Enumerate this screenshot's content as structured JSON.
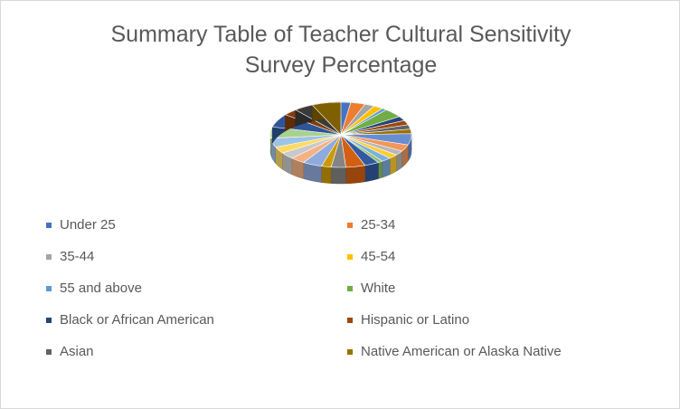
{
  "chart_data": {
    "type": "pie",
    "title": "Summary Table of Teacher Cultural Sensitivity Survey Percentage",
    "categories": [
      "Under 25",
      "25-34",
      "35-44",
      "45-54",
      "55 and above",
      "White",
      "Black or African American",
      "Hispanic or Latino",
      "Asian",
      "Native American or Alaska Native",
      null,
      null,
      null,
      null,
      null,
      null,
      null,
      null,
      null,
      null,
      null,
      null,
      null,
      null,
      null,
      null,
      null,
      null,
      null,
      null
    ],
    "values": [
      2,
      3,
      2,
      2,
      1,
      4,
      2,
      2,
      2,
      2,
      5,
      3,
      2,
      2,
      2,
      1,
      3,
      4,
      3,
      2,
      4,
      3,
      3,
      3,
      4,
      5,
      6,
      3,
      4,
      6
    ],
    "colors": [
      "#4472c4",
      "#ed7d31",
      "#a5a5a5",
      "#ffc000",
      "#5b9bd5",
      "#70ad47",
      "#264478",
      "#9e480e",
      "#636363",
      "#997300",
      "#698ed0",
      "#f1975a",
      "#b7b7b7",
      "#ffcd33",
      "#7cafdd",
      "#8cc168",
      "#335aa1",
      "#d26012",
      "#848484",
      "#cc9a00",
      "#8faadc",
      "#f4b183",
      "#c9c9c9",
      "#ffd966",
      "#9dc3e6",
      "#a9d18e",
      "#2f5597",
      "#843c0c",
      "#3a3a3a",
      "#7f6000"
    ]
  }
}
